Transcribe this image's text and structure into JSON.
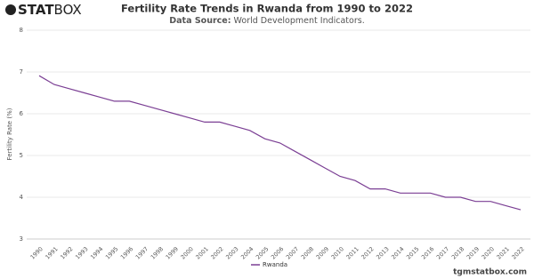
{
  "logo": {
    "bold": "STAT",
    "light": "BOX"
  },
  "footer": "tgmstatbox.com",
  "chart_data": {
    "type": "line",
    "title": "Fertility Rate Trends in Rwanda from 1990 to 2022",
    "subtitle_label": "Data Source:",
    "subtitle": "World Development Indicators.",
    "y_label": "Fertility Rate (%)",
    "categories": [
      "1990",
      "1991",
      "1992",
      "1993",
      "1994",
      "1995",
      "1996",
      "1997",
      "1998",
      "1999",
      "2000",
      "2001",
      "2002",
      "2003",
      "2004",
      "2005",
      "2006",
      "2007",
      "2008",
      "2009",
      "2010",
      "2011",
      "2012",
      "2013",
      "2014",
      "2015",
      "2016",
      "2017",
      "2018",
      "2019",
      "2020",
      "2021",
      "2022"
    ],
    "series": [
      {
        "name": "Rwanda",
        "color": "#7b3f94",
        "values": [
          6.91,
          6.7,
          6.6,
          6.5,
          6.4,
          6.3,
          6.3,
          6.2,
          6.1,
          6.0,
          5.9,
          5.8,
          5.8,
          5.7,
          5.6,
          5.4,
          5.3,
          5.1,
          4.9,
          4.7,
          4.5,
          4.4,
          4.2,
          4.2,
          4.1,
          4.1,
          4.1,
          4.0,
          4.0,
          3.9,
          3.9,
          3.8,
          3.7
        ]
      }
    ],
    "ylim": [
      3,
      8
    ],
    "yticks": [
      3,
      4,
      5,
      6,
      7,
      8
    ],
    "grid": true
  }
}
